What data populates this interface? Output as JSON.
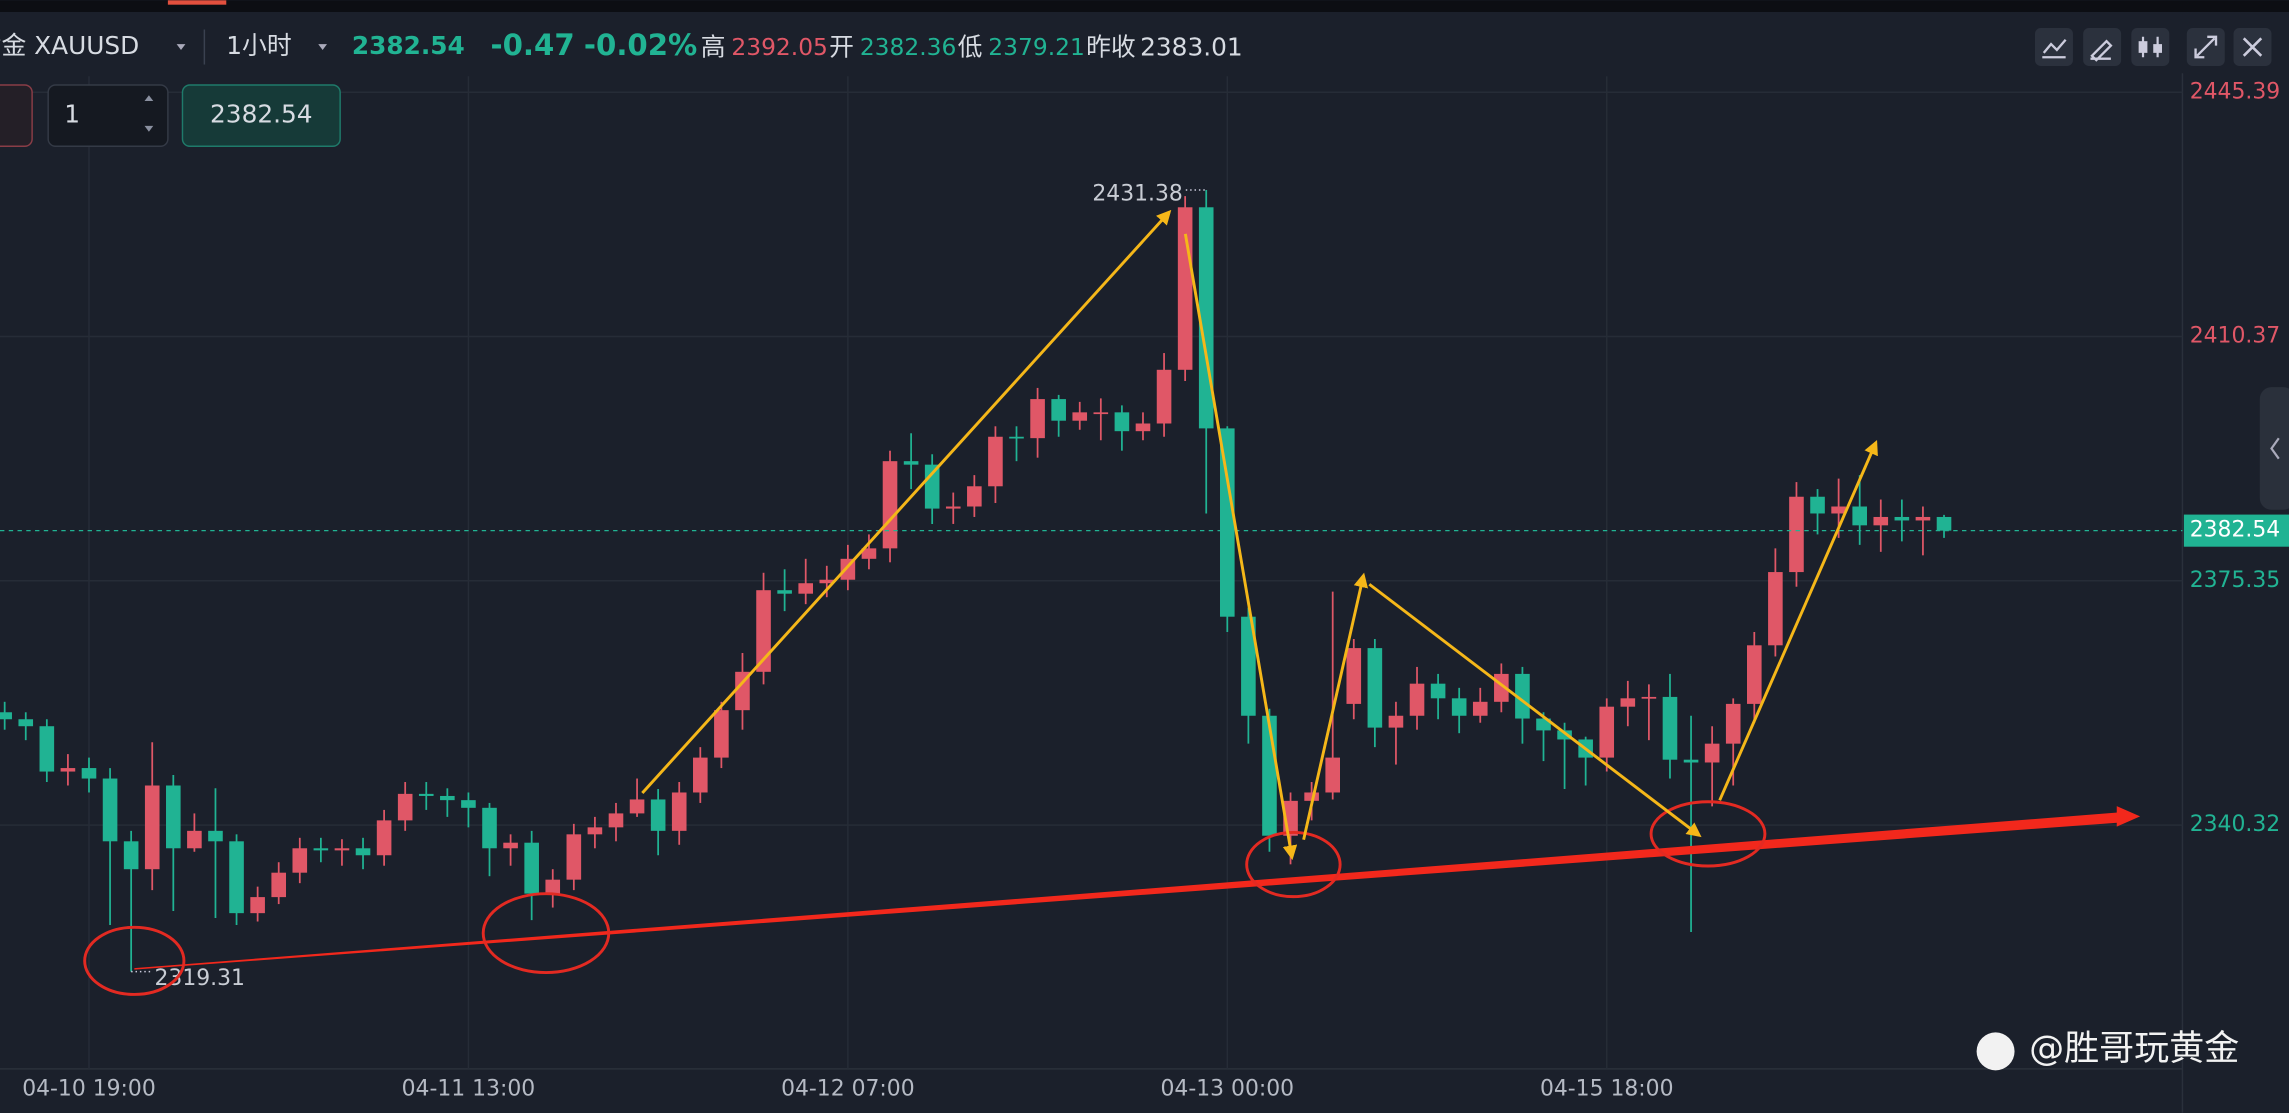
{
  "header": {
    "symbol": "黄金 XAUUSD",
    "interval": "1小时",
    "price": "2382.54",
    "change": "-0.47",
    "change_pct": "-0.02%",
    "high_label": "高",
    "high": "2392.05",
    "open_label": "开",
    "open": "2382.36",
    "low_label": "低",
    "low": "2379.21",
    "prev_label": "昨收",
    "prev": "2383.01"
  },
  "controls": {
    "quantity": "1",
    "price": "2382.54"
  },
  "watermark": "@胜哥玩黄金",
  "chart_data": {
    "type": "candlestick",
    "up_color": "#e05767",
    "down_color": "#20b393",
    "categories": [
      null,
      null,
      null,
      null,
      "04-10 19:00",
      null,
      null,
      null,
      null,
      null,
      null,
      null,
      null,
      null,
      null,
      null,
      null,
      null,
      null,
      null,
      null,
      null,
      "04-11 13:00",
      null,
      null,
      null,
      null,
      null,
      null,
      null,
      null,
      null,
      null,
      null,
      null,
      null,
      null,
      null,
      null,
      null,
      "04-12 07:00",
      null,
      null,
      null,
      null,
      null,
      null,
      null,
      null,
      null,
      null,
      null,
      null,
      null,
      null,
      null,
      null,
      null,
      "04-13 00:00",
      null,
      null,
      null,
      null,
      null,
      null,
      null,
      null,
      null,
      null,
      null,
      null,
      null,
      null,
      null,
      null,
      null,
      "04-15 18:00",
      null,
      null,
      null,
      null,
      null,
      null,
      null,
      null,
      null,
      null,
      null,
      null,
      null,
      null,
      null,
      null
    ],
    "open": [
      2356.5,
      2355.5,
      2354.5,
      2348.0,
      2348.5,
      2347.0,
      2338.0,
      2334.0,
      2346.0,
      2337.0,
      2339.5,
      2338.0,
      2327.7,
      2330.0,
      2333.5,
      2337.0,
      2336.7,
      2337.0,
      2336.0,
      2341.0,
      2344.8,
      2344.5,
      2343.9,
      2342.8,
      2337.0,
      2337.8,
      2330.5,
      2332.5,
      2339.0,
      2340.0,
      2342.0,
      2344.0,
      2339.5,
      2345.0,
      2350.0,
      2356.8,
      2362.3,
      2374.0,
      2373.5,
      2375.0,
      2375.5,
      2378.5,
      2380.0,
      2392.5,
      2392.0,
      2385.7,
      2386.0,
      2388.9,
      2396.0,
      2395.8,
      2401.4,
      2398.3,
      2399.5,
      2399.5,
      2396.8,
      2397.9,
      2405.6,
      2428.9,
      2397.2,
      2370.2,
      2356.0,
      2338.8,
      2343.8,
      2345.0,
      2357.7,
      2365.7,
      2354.3,
      2356.0,
      2360.6,
      2358.5,
      2356.0,
      2358.0,
      2362.0,
      2355.6,
      2353.9,
      2352.6,
      2350.0,
      2357.3,
      2358.5,
      2358.7,
      2349.7,
      2349.3,
      2352.0,
      2357.7,
      2366.1,
      2376.6,
      2387.4,
      2385.0,
      2386.0,
      2383.3,
      2384.5,
      2384.0,
      2384.5
    ],
    "high": [
      2358.0,
      2356.5,
      2355.5,
      2350.5,
      2350.0,
      2348.5,
      2339.5,
      2352.2,
      2347.5,
      2342.0,
      2345.6,
      2339.0,
      2331.5,
      2335.0,
      2338.5,
      2338.5,
      2338.3,
      2338.5,
      2342.5,
      2346.5,
      2346.5,
      2345.6,
      2345.0,
      2343.5,
      2339.0,
      2339.5,
      2334.0,
      2340.5,
      2341.5,
      2343.5,
      2347.0,
      2345.5,
      2346.5,
      2351.5,
      2358.0,
      2365.0,
      2376.5,
      2377.0,
      2378.5,
      2377.5,
      2380.5,
      2382.0,
      2394.0,
      2396.5,
      2393.5,
      2388.0,
      2390.5,
      2397.5,
      2397.5,
      2403.0,
      2402.0,
      2401.0,
      2401.5,
      2400.5,
      2399.5,
      2408.0,
      2430.5,
      2431.38,
      2397.5,
      2371.5,
      2357.0,
      2345.0,
      2346.5,
      2373.8,
      2367.0,
      2367.0,
      2358.0,
      2363.0,
      2362.0,
      2360.0,
      2360.0,
      2363.5,
      2363.0,
      2356.5,
      2355.0,
      2353.0,
      2358.5,
      2361.0,
      2360.5,
      2362.0,
      2356.0,
      2354.5,
      2358.5,
      2368.0,
      2380.0,
      2389.5,
      2388.5,
      2390.0,
      2390.5,
      2387.0,
      2387.0,
      2386.0,
      2384.8
    ],
    "low": [
      2354.0,
      2352.5,
      2346.5,
      2346.0,
      2345.0,
      2326.0,
      2319.31,
      2331.0,
      2328.0,
      2336.5,
      2327.0,
      2326.0,
      2326.5,
      2329.0,
      2332.0,
      2335.0,
      2334.5,
      2334.0,
      2334.5,
      2339.5,
      2342.5,
      2341.5,
      2340.0,
      2333.0,
      2334.5,
      2326.7,
      2328.5,
      2331.0,
      2337.0,
      2338.0,
      2341.5,
      2336.0,
      2337.5,
      2343.5,
      2348.5,
      2354.0,
      2360.5,
      2371.0,
      2372.0,
      2373.0,
      2374.0,
      2377.0,
      2378.0,
      2388.5,
      2383.5,
      2383.5,
      2384.5,
      2386.5,
      2392.5,
      2393.0,
      2396.0,
      2397.0,
      2395.5,
      2394.0,
      2395.5,
      2396.0,
      2404.0,
      2385.0,
      2368.0,
      2352.0,
      2336.5,
      2334.7,
      2341.0,
      2344.0,
      2355.5,
      2351.5,
      2349.0,
      2354.0,
      2355.5,
      2353.5,
      2355.0,
      2356.5,
      2352.0,
      2349.5,
      2345.5,
      2346.0,
      2348.0,
      2354.5,
      2352.5,
      2347.0,
      2325.0,
      2343.0,
      2346.0,
      2355.0,
      2364.5,
      2374.5,
      2382.0,
      2381.5,
      2380.5,
      2379.5,
      2381.0,
      2379.0,
      2381.5
    ],
    "close": [
      2355.5,
      2354.5,
      2348.0,
      2348.5,
      2347.0,
      2338.0,
      2334.0,
      2346.0,
      2337.0,
      2339.5,
      2338.0,
      2327.7,
      2330.0,
      2333.5,
      2337.0,
      2336.7,
      2337.0,
      2336.0,
      2341.0,
      2344.8,
      2344.5,
      2343.9,
      2342.8,
      2337.0,
      2337.8,
      2330.5,
      2332.5,
      2339.0,
      2340.0,
      2342.0,
      2344.0,
      2339.5,
      2345.0,
      2350.0,
      2356.8,
      2362.3,
      2374.0,
      2373.5,
      2375.0,
      2375.5,
      2378.5,
      2380.0,
      2392.5,
      2392.0,
      2385.7,
      2386.0,
      2388.9,
      2396.0,
      2395.8,
      2401.4,
      2398.3,
      2399.5,
      2399.5,
      2396.8,
      2397.9,
      2405.6,
      2428.9,
      2397.2,
      2370.2,
      2356.0,
      2338.8,
      2343.8,
      2345.0,
      2350.0,
      2365.7,
      2354.3,
      2356.0,
      2360.6,
      2358.5,
      2356.0,
      2358.0,
      2362.0,
      2355.6,
      2353.9,
      2352.6,
      2350.0,
      2357.3,
      2358.5,
      2358.7,
      2349.7,
      2349.3,
      2352.0,
      2357.7,
      2366.1,
      2376.6,
      2387.4,
      2385.0,
      2386.0,
      2383.3,
      2384.5,
      2384.0,
      2384.5,
      2382.54
    ],
    "ylim": [
      2305.37,
      2447.69
    ],
    "yticks": [
      2445.39,
      2410.37,
      2375.35,
      2340.32
    ],
    "max_note": 2431.38,
    "min_note": 2319.31,
    "last_price": 2382.54,
    "grid": true
  }
}
